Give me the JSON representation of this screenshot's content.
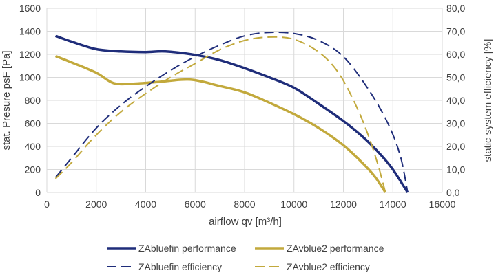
{
  "chart_data": {
    "type": "line",
    "xlabel": "airflow qv [m³/h]",
    "ylabel": "stat. Presure psF [Pa]",
    "y2label": "static system efficiency [%]",
    "xlim": [
      0,
      16000
    ],
    "ylim": [
      0,
      1600
    ],
    "y2lim": [
      0,
      80
    ],
    "x_ticks": [
      0,
      2000,
      4000,
      6000,
      8000,
      10000,
      12000,
      14000,
      16000
    ],
    "y_ticks": [
      0,
      200,
      400,
      600,
      800,
      1000,
      1200,
      1400,
      1600
    ],
    "y2_ticks": [
      "0,0",
      "10,0",
      "20,0",
      "30,0",
      "40,0",
      "50,0",
      "60,0",
      "70,0",
      "80,0"
    ],
    "grid": true,
    "legend_position": "bottom",
    "series": [
      {
        "name": "ZAbluefin performance",
        "axis": "left",
        "color": "#1f2d7a",
        "dash": "solid",
        "x": [
          350,
          1000,
          2000,
          3000,
          4000,
          4800,
          6000,
          7000,
          8000,
          9000,
          10000,
          11000,
          12000,
          12800,
          13500,
          14000,
          14600
        ],
        "y": [
          1360,
          1310,
          1245,
          1225,
          1220,
          1225,
          1195,
          1150,
          1080,
          1000,
          910,
          770,
          620,
          480,
          330,
          200,
          0
        ]
      },
      {
        "name": "ZAvblue2 performance",
        "axis": "left",
        "color": "#c2a93c",
        "dash": "solid",
        "x": [
          350,
          1000,
          2000,
          2700,
          3500,
          4500,
          5800,
          7000,
          8000,
          9000,
          10000,
          11000,
          12000,
          12800,
          13300,
          13700
        ],
        "y": [
          1185,
          1130,
          1040,
          950,
          945,
          960,
          980,
          925,
          870,
          780,
          680,
          560,
          410,
          250,
          130,
          0
        ]
      },
      {
        "name": "ZAbluefin efficiency",
        "axis": "right",
        "color": "#1f2d7a",
        "dash": "long-dash",
        "x": [
          350,
          1000,
          2000,
          3000,
          4000,
          5000,
          6000,
          7000,
          8000,
          9000,
          10000,
          11000,
          12000,
          13000,
          13800,
          14300,
          14600
        ],
        "y": [
          6.5,
          15,
          28,
          38,
          46,
          53,
          59,
          64,
          68,
          69.5,
          69,
          66,
          59,
          45,
          30,
          16,
          0
        ]
      },
      {
        "name": "ZAvblue2 efficiency",
        "axis": "right",
        "color": "#c2a93c",
        "dash": "long-dash",
        "x": [
          350,
          1000,
          2000,
          3000,
          4000,
          5000,
          6000,
          7000,
          8000,
          9000,
          10000,
          11000,
          11800,
          12500,
          13000,
          13400,
          13700
        ],
        "y": [
          6,
          13,
          25,
          35,
          43,
          50,
          56,
          62,
          66,
          67.5,
          66.5,
          61,
          52,
          38,
          25,
          12,
          0
        ]
      }
    ]
  }
}
